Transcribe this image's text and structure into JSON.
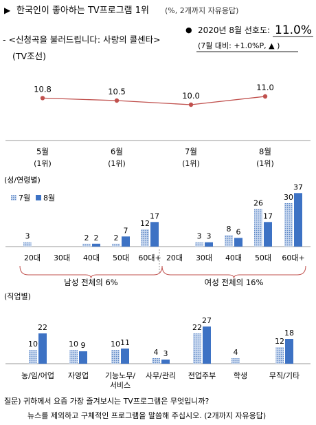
{
  "header": {
    "marker": "▶",
    "title": "한국인이 좋아하는 TV프로그램 1위",
    "title_note": "(%, 2개까지 자유응답)",
    "program_line1": "- <신청곡을 불러드립니다: 사랑의 콜센타>",
    "program_line2": "(TV조선)",
    "bullet": "●",
    "pref_label": "2020년 8월 선호도:",
    "pref_value": "11.0%",
    "change_note": "(7월 대비: +1.0%P, ▲ )"
  },
  "colors": {
    "trend_line": "#c0504d",
    "bar_july_fill": "#c9d8ef",
    "bar_july_dots": "#5b86c5",
    "bar_aug": "#3d72c4",
    "axis": "#9a9a9a",
    "bracket": "#c0504d"
  },
  "chart_data": [
    {
      "type": "line",
      "categories": [
        "5월",
        "6월",
        "7월",
        "8월"
      ],
      "rank_labels": [
        "(1위)",
        "(1위)",
        "(1위)",
        "(1위)"
      ],
      "values": [
        10.8,
        10.5,
        10.0,
        11.0
      ],
      "value_labels": [
        "10.8",
        "10.5",
        "10.0",
        "11.0"
      ]
    },
    {
      "type": "bar",
      "section_label": "(성/연령별)",
      "categories": [
        "20대",
        "30대",
        "40대",
        "50대",
        "60대+",
        "20대",
        "30대",
        "40대",
        "50대",
        "60대+"
      ],
      "series": [
        {
          "name": "7월",
          "values": [
            3,
            0,
            2,
            2,
            12,
            0,
            3,
            8,
            26,
            30
          ],
          "labels": [
            "3",
            "",
            "2",
            "2",
            "12",
            "",
            "3",
            "8",
            "26",
            "30"
          ]
        },
        {
          "name": "8월",
          "values": [
            0,
            0,
            2,
            7,
            17,
            0,
            3,
            6,
            17,
            37
          ],
          "labels": [
            "",
            "",
            "2",
            "7",
            "17",
            "",
            "3",
            "6",
            "17",
            "37"
          ]
        }
      ],
      "groups": [
        {
          "label": "남성 전체의 6%",
          "from": 0,
          "to": 4
        },
        {
          "label": "여성 전체의 16%",
          "from": 5,
          "to": 9
        }
      ]
    },
    {
      "type": "bar",
      "section_label": "(직업별)",
      "categories": [
        [
          "농/임/어업"
        ],
        [
          "자영업"
        ],
        [
          "기능노무/",
          "서비스"
        ],
        [
          "사무/관리"
        ],
        [
          "전업주부"
        ],
        [
          "학생"
        ],
        [
          "무직/기타"
        ]
      ],
      "series": [
        {
          "name": "7월",
          "values": [
            10,
            10,
            10,
            4,
            22,
            4,
            12
          ],
          "labels": [
            "10",
            "10",
            "10",
            "4",
            "22",
            "4",
            "12"
          ]
        },
        {
          "name": "8월",
          "values": [
            22,
            9,
            11,
            3,
            27,
            0,
            18
          ],
          "labels": [
            "22",
            "9",
            "11",
            "3",
            "27",
            "",
            "18"
          ]
        }
      ]
    }
  ],
  "question": {
    "line1": "질문) 귀하께서 요즘 가장 즐겨보시는 TV프로그램은 무엇입니까?",
    "line2": "뉴스를 제외하고 구체적인 프로그램을 말씀해 주십시오. (2개까지 자유응답)"
  }
}
